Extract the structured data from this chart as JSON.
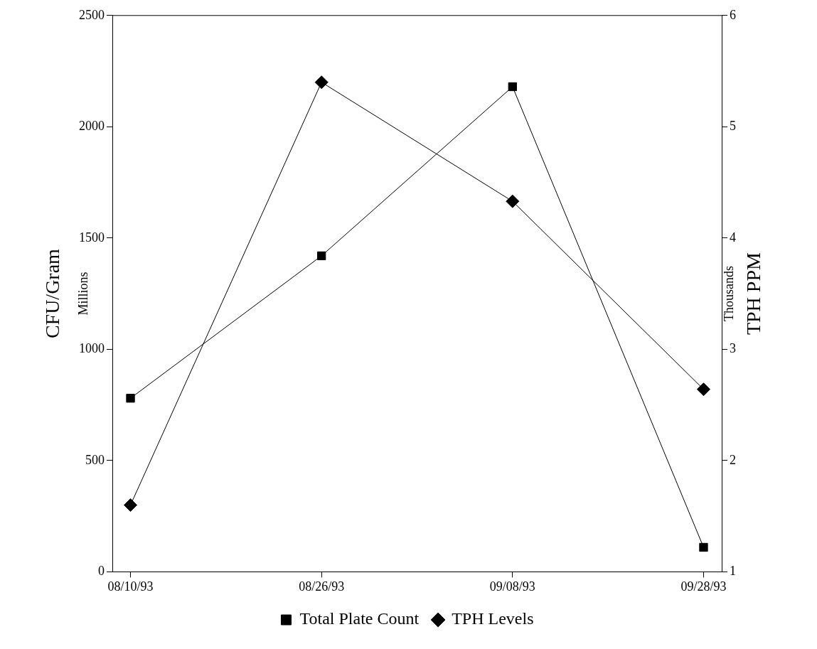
{
  "chart_data": {
    "type": "line",
    "categories": [
      "08/10/93",
      "08/26/93",
      "09/08/93",
      "09/28/93"
    ],
    "ylabel": "CFU/Gram",
    "y2label": "TPH PPM",
    "annotations": [
      "Millions",
      "Thousands"
    ],
    "series": [
      {
        "name": "Total Plate Count",
        "color": "#000000",
        "marker": "square",
        "values": [
          780,
          1420,
          2180,
          110
        ]
      },
      {
        "name": "TPH Levels",
        "color": "#000000",
        "marker": "diamond",
        "axis": "y2",
        "values": [
          1.6,
          5.4,
          4.33,
          2.64
        ]
      }
    ],
    "ylim": [
      0,
      2500
    ],
    "yticks": [
      0,
      500,
      1000,
      1500,
      2000,
      2500
    ],
    "y2lim": [
      1,
      6
    ],
    "y2ticks": [
      1,
      2,
      3,
      4,
      5,
      6
    ],
    "grid": false,
    "legend": "bottom",
    "line_style": "solid"
  }
}
